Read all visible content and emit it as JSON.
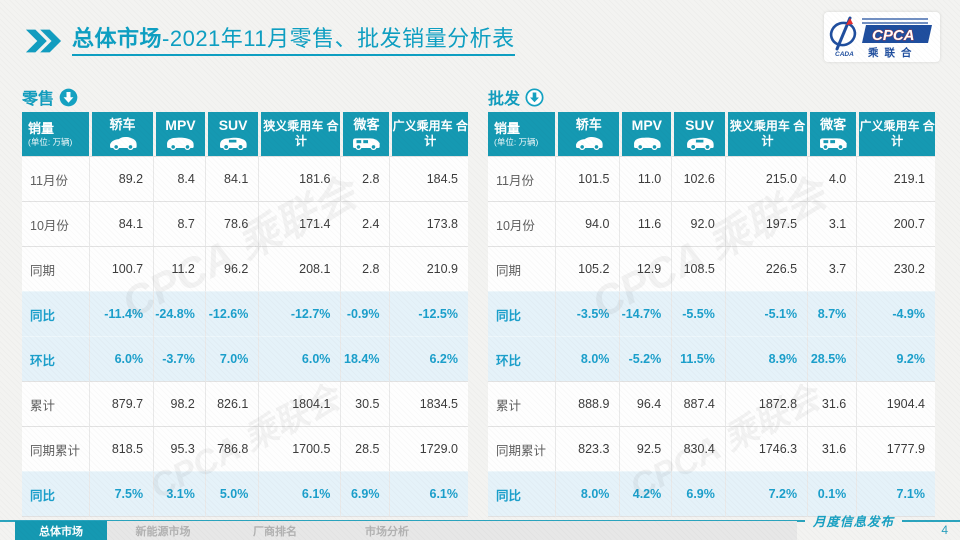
{
  "title": {
    "prefix_bold": "总体市场",
    "suffix": "-2021年11月零售、批发销量分析表"
  },
  "logo": {
    "acronym": "CPCA",
    "cn_name": "乘联会",
    "sub": "CADA"
  },
  "watermark": "CPCA 乘联会",
  "tables": [
    {
      "name": "零售",
      "header": {
        "label": "销量",
        "unit": "(单位: 万辆)"
      },
      "columns": [
        {
          "label": "轿车",
          "icon": "car-icon"
        },
        {
          "label": "MPV",
          "icon": "mpv-icon"
        },
        {
          "label": "SUV",
          "icon": "suv-icon"
        },
        {
          "label": "狭义乘用车 合计",
          "icon": null
        },
        {
          "label": "微客",
          "icon": "van-icon"
        },
        {
          "label": "广义乘用车 合计",
          "icon": null
        }
      ],
      "rows": [
        {
          "label": "11月份",
          "type": "normal",
          "values": [
            "89.2",
            "8.4",
            "84.1",
            "181.6",
            "2.8",
            "184.5"
          ]
        },
        {
          "label": "10月份",
          "type": "normal",
          "values": [
            "84.1",
            "8.7",
            "78.6",
            "171.4",
            "2.4",
            "173.8"
          ]
        },
        {
          "label": "同期",
          "type": "normal",
          "values": [
            "100.7",
            "11.2",
            "96.2",
            "208.1",
            "2.8",
            "210.9"
          ]
        },
        {
          "label": "同比",
          "type": "percent",
          "values": [
            "-11.4%",
            "-24.8%",
            "-12.6%",
            "-12.7%",
            "-0.9%",
            "-12.5%"
          ]
        },
        {
          "label": "环比",
          "type": "percent",
          "values": [
            "6.0%",
            "-3.7%",
            "7.0%",
            "6.0%",
            "18.4%",
            "6.2%"
          ]
        },
        {
          "label": "累计",
          "type": "normal",
          "values": [
            "879.7",
            "98.2",
            "826.1",
            "1804.1",
            "30.5",
            "1834.5"
          ]
        },
        {
          "label": "同期累计",
          "type": "normal",
          "values": [
            "818.5",
            "95.3",
            "786.8",
            "1700.5",
            "28.5",
            "1729.0"
          ]
        },
        {
          "label": "同比",
          "type": "percent",
          "values": [
            "7.5%",
            "3.1%",
            "5.0%",
            "6.1%",
            "6.9%",
            "6.1%"
          ]
        }
      ]
    },
    {
      "name": "批发",
      "header": {
        "label": "销量",
        "unit": "(单位: 万辆)"
      },
      "columns": [
        {
          "label": "轿车",
          "icon": "car-icon"
        },
        {
          "label": "MPV",
          "icon": "mpv-icon"
        },
        {
          "label": "SUV",
          "icon": "suv-icon"
        },
        {
          "label": "狭义乘用车 合计",
          "icon": null
        },
        {
          "label": "微客",
          "icon": "van-icon"
        },
        {
          "label": "广义乘用车 合计",
          "icon": null
        }
      ],
      "rows": [
        {
          "label": "11月份",
          "type": "normal",
          "values": [
            "101.5",
            "11.0",
            "102.6",
            "215.0",
            "4.0",
            "219.1"
          ]
        },
        {
          "label": "10月份",
          "type": "normal",
          "values": [
            "94.0",
            "11.6",
            "92.0",
            "197.5",
            "3.1",
            "200.7"
          ]
        },
        {
          "label": "同期",
          "type": "normal",
          "values": [
            "105.2",
            "12.9",
            "108.5",
            "226.5",
            "3.7",
            "230.2"
          ]
        },
        {
          "label": "同比",
          "type": "percent",
          "values": [
            "-3.5%",
            "-14.7%",
            "-5.5%",
            "-5.1%",
            "8.7%",
            "-4.9%"
          ]
        },
        {
          "label": "环比",
          "type": "percent",
          "values": [
            "8.0%",
            "-5.2%",
            "11.5%",
            "8.9%",
            "28.5%",
            "9.2%"
          ]
        },
        {
          "label": "累计",
          "type": "normal",
          "values": [
            "888.9",
            "96.4",
            "887.4",
            "1872.8",
            "31.6",
            "1904.4"
          ]
        },
        {
          "label": "同期累计",
          "type": "normal",
          "values": [
            "823.3",
            "92.5",
            "830.4",
            "1746.3",
            "31.6",
            "1777.9"
          ]
        },
        {
          "label": "同比",
          "type": "percent",
          "values": [
            "8.0%",
            "4.2%",
            "6.9%",
            "7.2%",
            "0.1%",
            "7.1%"
          ]
        }
      ]
    }
  ],
  "footer": {
    "tabs": [
      {
        "label": "总体市场",
        "active": true
      },
      {
        "label": "新能源市场",
        "active": false
      },
      {
        "label": "厂商排名",
        "active": false
      },
      {
        "label": "市场分析",
        "active": false
      }
    ],
    "publish_label": "月度信息发布",
    "page_number": "4"
  },
  "colors": {
    "accent": "#1599B2",
    "title": "#0E9FC2",
    "percent_text": "#1B9FCB",
    "percent_row_bg": "#E5F2F9"
  }
}
